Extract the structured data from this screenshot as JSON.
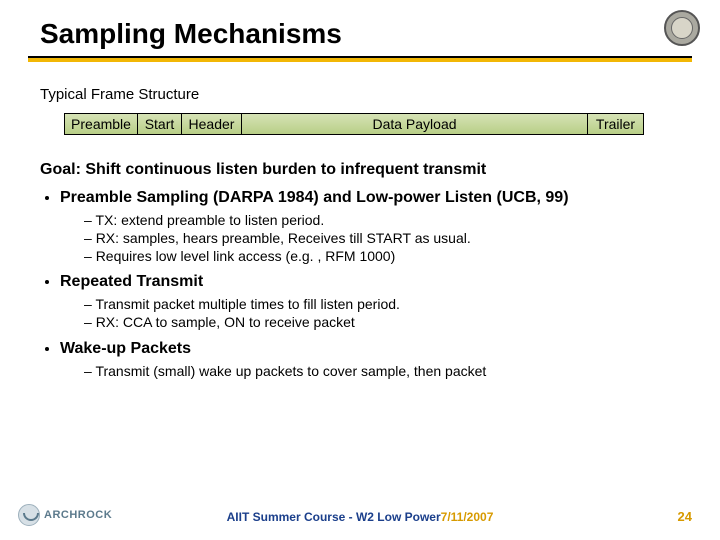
{
  "title": "Sampling Mechanisms",
  "subheading": "Typical Frame Structure",
  "frame": {
    "preamble": "Preamble",
    "start": "Start",
    "header": "Header",
    "payload": "Data Payload",
    "trailer": "Trailer",
    "cell_bg_top": "#d6e3b5",
    "cell_bg_bottom": "#b8cf87",
    "border_color": "#000000"
  },
  "goal": "Goal: Shift continuous listen burden to infrequent transmit",
  "bullets": {
    "b1": {
      "label": "Preamble Sampling (DARPA 1984) and Low-power Listen (UCB, 99)",
      "s1": "TX: extend preamble to listen period.",
      "s2": "RX: samples, hears preamble, Receives till START as usual.",
      "s3": "Requires low level link access (e.g. , RFM 1000)"
    },
    "b2": {
      "label": "Repeated Transmit",
      "s1": "Transmit packet multiple times to fill listen period.",
      "s2": "RX: CCA to sample, ON to receive packet"
    },
    "b3": {
      "label": "Wake-up Packets",
      "s1": "Transmit (small) wake up packets to cover sample, then packet"
    }
  },
  "footer": {
    "logo_text": "ARCHROCK",
    "course": "AIIT Summer Course - W2 Low Power",
    "date": "7/11/2007",
    "page": "24",
    "blue": "#1b3f8b",
    "gold": "#d79a00"
  },
  "colors": {
    "underline_black": "#000000",
    "underline_gold": "#f2b705",
    "background": "#ffffff"
  }
}
